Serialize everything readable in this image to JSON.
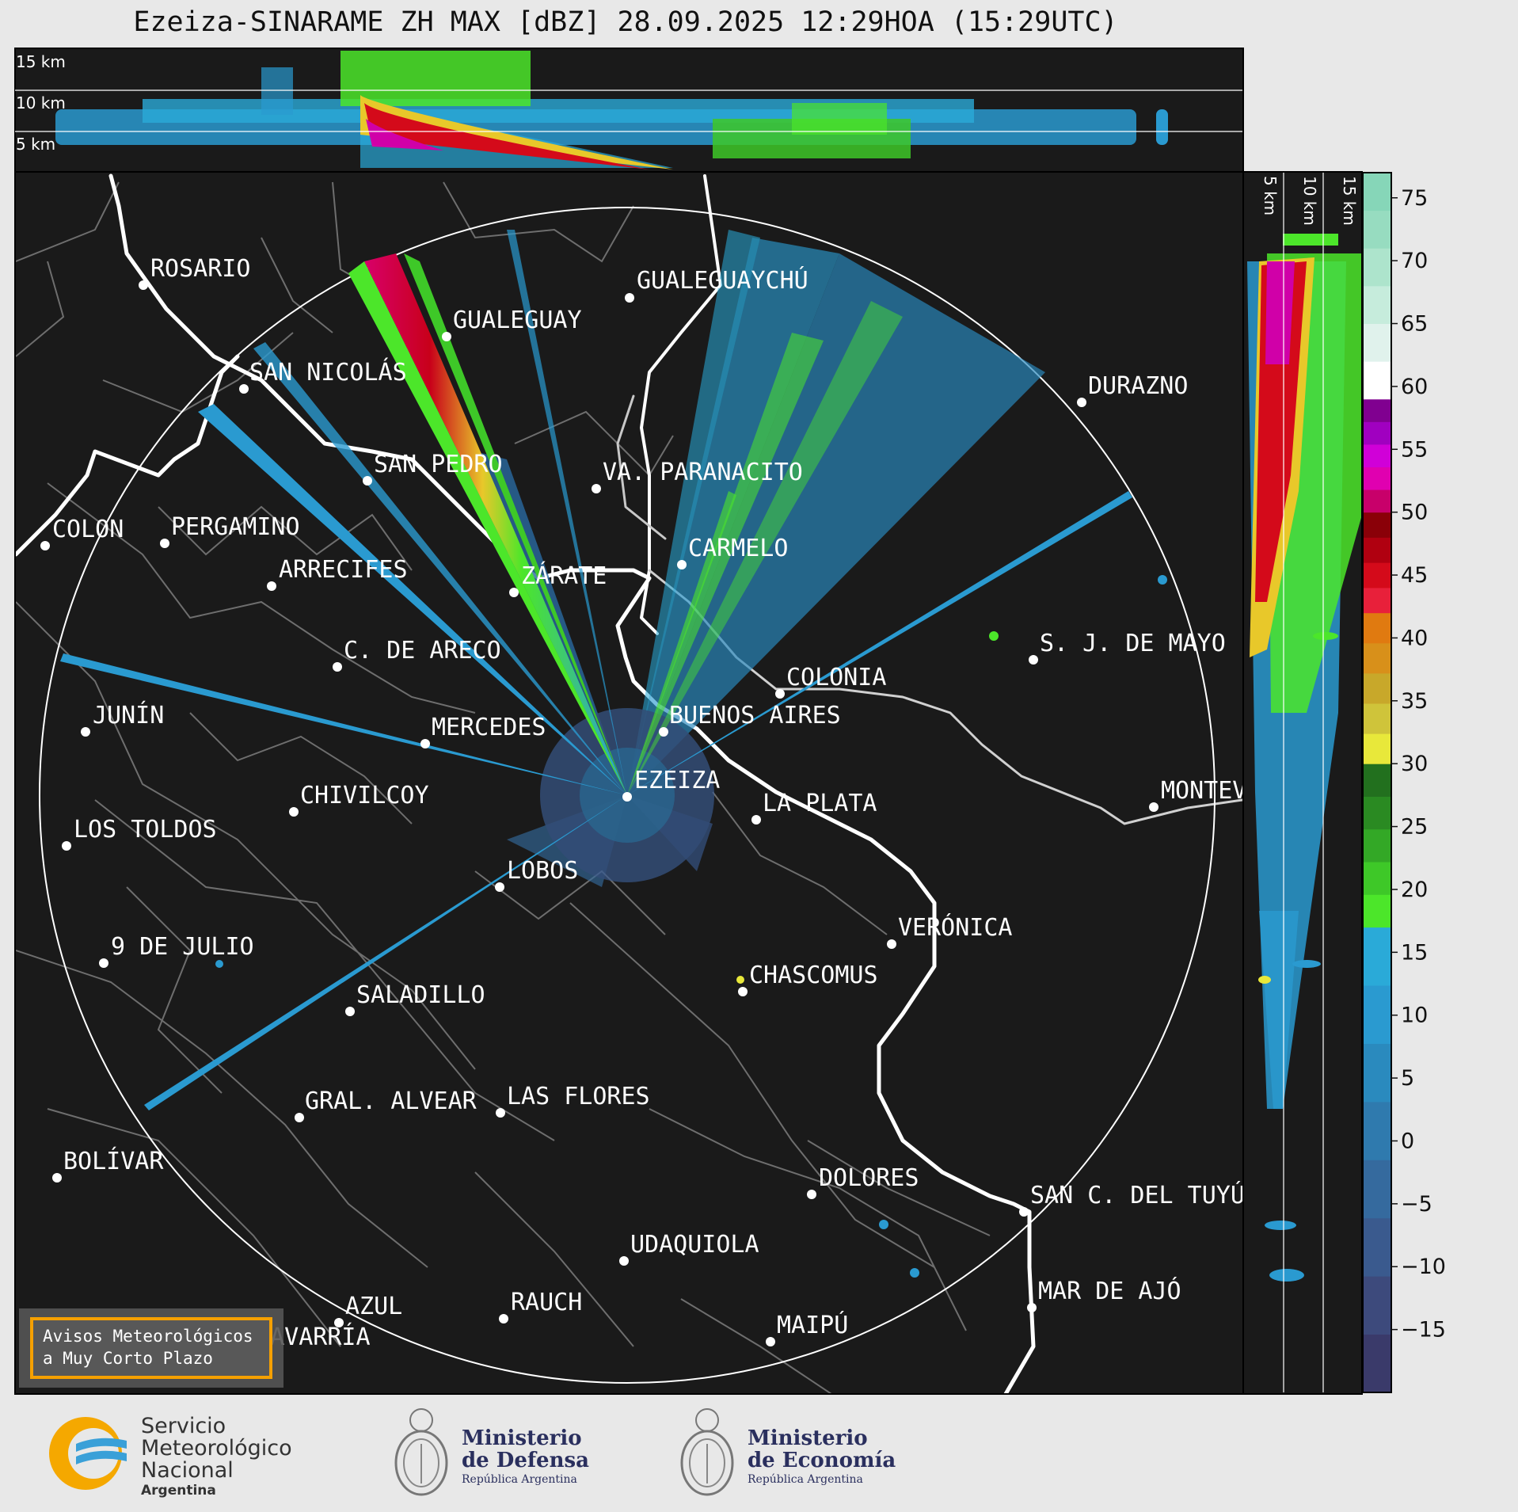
{
  "title": "Ezeiza-SINARAME ZH MAX [dBZ] 28.09.2025 12:29HOA (15:29UTC)",
  "top_panel": {
    "km_labels": [
      "15 km",
      "10 km",
      "5 km"
    ]
  },
  "side_panel": {
    "km_labels": [
      "5 km",
      "10 km",
      "15 km"
    ]
  },
  "colorbar": {
    "ticks": [
      "75",
      "70",
      "65",
      "60",
      "55",
      "50",
      "45",
      "40",
      "35",
      "30",
      "25",
      "20",
      "15",
      "10",
      "5",
      "0",
      "−5",
      "−10",
      "−15"
    ],
    "bands": [
      {
        "from": -20,
        "to": 17,
        "colors": [
          "#3a3a6a",
          "#3d4a7c",
          "#3a5a8e",
          "#356a9e",
          "#2f7aae",
          "#2a8abe",
          "#2a9ad0",
          "#2aaad8"
        ]
      },
      {
        "from": 17,
        "to": 30,
        "colors": [
          "#4ce62a",
          "#3ec828",
          "#33a826",
          "#2a8a22",
          "#22701e"
        ]
      },
      {
        "from": 30,
        "to": 42,
        "colors": [
          "#e8e83a",
          "#cfc43a",
          "#c8a82a",
          "#d8901a",
          "#e07a10"
        ]
      },
      {
        "from": 42,
        "to": 50,
        "colors": [
          "#e8203a",
          "#d40a1a",
          "#b00010",
          "#8a0008"
        ]
      },
      {
        "from": 50,
        "to": 59,
        "colors": [
          "#c8006a",
          "#e000b0",
          "#d000d8",
          "#a000c0",
          "#800090"
        ]
      },
      {
        "from": 59,
        "to": 77,
        "colors": [
          "#ffffff",
          "#e0f2ec",
          "#c6ecdc",
          "#ade4cc",
          "#97dcc0",
          "#86d6b8"
        ]
      }
    ]
  },
  "cities": [
    {
      "name": "ROSARIO"
    },
    {
      "name": "GUALEGUAYCHÚ"
    },
    {
      "name": "GUALEGUAY"
    },
    {
      "name": "SAN NICOLÁS"
    },
    {
      "name": "DURAZNO"
    },
    {
      "name": "SAN PEDRO"
    },
    {
      "name": "VA. PARANACITO"
    },
    {
      "name": "COLON"
    },
    {
      "name": "PERGAMINO"
    },
    {
      "name": "CARMELO"
    },
    {
      "name": "ARRECIFES"
    },
    {
      "name": "ZÁRATE"
    },
    {
      "name": "S. J. DE MAYO"
    },
    {
      "name": "C. DE ARECO"
    },
    {
      "name": "COLONIA"
    },
    {
      "name": "JUNÍN"
    },
    {
      "name": "BUENOS AIRES"
    },
    {
      "name": "MERCEDES"
    },
    {
      "name": "EZEIZA"
    },
    {
      "name": "MONTEV"
    },
    {
      "name": "CHIVILCOY"
    },
    {
      "name": "LA PLATA"
    },
    {
      "name": "LOS TOLDOS"
    },
    {
      "name": "LOBOS"
    },
    {
      "name": "VERÓNICA"
    },
    {
      "name": "9 DE JULIO"
    },
    {
      "name": "CHASCOMUS"
    },
    {
      "name": "SALADILLO"
    },
    {
      "name": "GRAL. ALVEAR"
    },
    {
      "name": "LAS FLORES"
    },
    {
      "name": "BOLÍVAR"
    },
    {
      "name": "DOLORES"
    },
    {
      "name": "SAN C. DEL TUYÚ"
    },
    {
      "name": "UDAQUIOLA"
    },
    {
      "name": "MAR DE AJÓ"
    },
    {
      "name": "AZUL"
    },
    {
      "name": "RAUCH"
    },
    {
      "name": "MAIPÚ"
    },
    {
      "name": "OLAVARRÍA"
    }
  ],
  "warning_box": {
    "line1": "Avisos Meteorológicos",
    "line2": "a Muy Corto Plazo"
  },
  "logos": {
    "smn": {
      "line1": "Servicio",
      "line2": "Meteorológico",
      "line3": "Nacional",
      "line4": "Argentina"
    },
    "defensa": {
      "line1": "Ministerio",
      "line2": "de Defensa",
      "line3": "República Argentina"
    },
    "economia": {
      "line1": "Ministerio",
      "line2": "de Economía",
      "line3": "República Argentina"
    }
  }
}
